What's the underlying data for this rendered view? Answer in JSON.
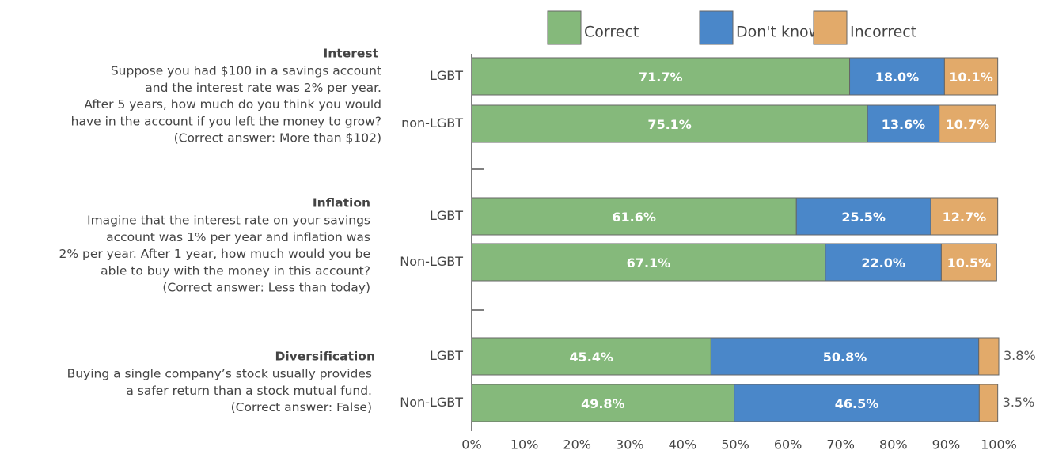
{
  "chart_data": {
    "type": "stacked-bar-horizontal",
    "groups": [
      {
        "title": "Interest",
        "lines": [
          "Suppose you had $100 in a savings account",
          "and the interest rate was 2% per year.",
          "After 5 years, how much do you think you would",
          "have in the account if you left the money to grow?",
          "(Correct answer: More than $102)"
        ]
      },
      {
        "title": "Inflation",
        "lines": [
          "Imagine that the interest rate on your savings",
          "account was 1% per year and inflation was",
          "2% per year. After 1 year, how much would you be",
          "able to buy with the money in this account?",
          "(Correct answer: Less than today)"
        ]
      },
      {
        "title": "Diversification",
        "lines": [
          "Buying a single company’s stock usually provides",
          "a safer return than a stock mutual fund.",
          "(Correct answer: False)"
        ]
      }
    ],
    "categories": [
      "LGBT",
      "non-LGBT",
      "LGBT",
      "Non-LGBT",
      "LGBT",
      "Non-LGBT"
    ],
    "series": [
      {
        "name": "Correct",
        "color": "#85b97b",
        "values": [
          71.7,
          75.1,
          61.6,
          67.1,
          45.4,
          49.8
        ],
        "value_labels": [
          "71.7%",
          "75.1%",
          "61.6%",
          "67.1%",
          "45.4%",
          "49.8%"
        ]
      },
      {
        "name": "Don't know",
        "color": "#4a87c9",
        "values": [
          18.0,
          13.6,
          25.5,
          22.0,
          50.8,
          46.5
        ],
        "value_labels": [
          "18.0%",
          "13.6%",
          "25.5%",
          "22.0%",
          "50.8%",
          "46.5%"
        ]
      },
      {
        "name": "Incorrect",
        "color": "#e2aa6a",
        "values": [
          10.1,
          10.7,
          12.7,
          10.5,
          3.8,
          3.5
        ],
        "value_labels": [
          "10.1%",
          "10.7%",
          "12.7%",
          "10.5%",
          "3.8%",
          "3.5%"
        ]
      }
    ],
    "xlim": [
      0,
      100
    ],
    "xticks": [
      {
        "value": 0,
        "label": "0%"
      },
      {
        "value": 10,
        "label": "10%"
      },
      {
        "value": 20,
        "label": "20%"
      },
      {
        "value": 30,
        "label": "30%"
      },
      {
        "value": 40,
        "label": "40%"
      },
      {
        "value": 50,
        "label": "50%"
      },
      {
        "value": 60,
        "label": "60%"
      },
      {
        "value": 70,
        "label": "70%"
      },
      {
        "value": 80,
        "label": "80%"
      },
      {
        "value": 90,
        "label": "90%"
      },
      {
        "value": 100,
        "label": "100%"
      }
    ],
    "grid": false,
    "legend": "top"
  }
}
